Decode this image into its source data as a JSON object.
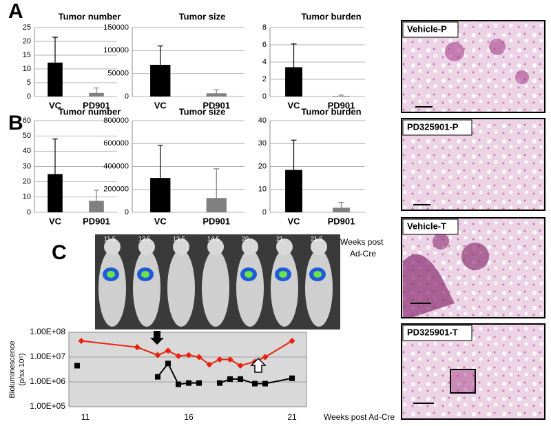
{
  "figure": {
    "panel_labels": [
      "A",
      "B",
      "C"
    ],
    "histology_labels": [
      "Vehicle-P",
      "PD325901-P",
      "Vehicle-T",
      "PD325901-T"
    ],
    "imaging_weeks": [
      "11.5",
      "12.5",
      "13.5",
      "14.5",
      "20",
      "21",
      "21.5"
    ],
    "imaging_caption": [
      "Weeks post",
      "Ad-Cre"
    ]
  },
  "chart_data": [
    {
      "type": "bar",
      "title": "Tumor number",
      "categories": [
        "VC",
        "PD901"
      ],
      "values": [
        12.3,
        1.3
      ],
      "errors": [
        9.2,
        1.8
      ],
      "colors": [
        "#000000",
        "#808080"
      ],
      "ylim": [
        0,
        25
      ],
      "yticks": [
        0,
        5,
        10,
        15,
        20,
        25
      ],
      "grid": true
    },
    {
      "type": "bar",
      "title": "Tumor size",
      "categories": [
        "VC",
        "PD901"
      ],
      "values": [
        69000,
        7000
      ],
      "errors": [
        41000,
        7500
      ],
      "colors": [
        "#000000",
        "#808080"
      ],
      "ylim": [
        0,
        150000
      ],
      "yticks": [
        0,
        50000,
        100000,
        150000
      ],
      "grid": true
    },
    {
      "type": "bar",
      "title": "Tumor burden",
      "categories": [
        "VC",
        "PD901"
      ],
      "values": [
        3.4,
        0.07
      ],
      "errors": [
        2.7,
        0.1
      ],
      "colors": [
        "#000000",
        "#808080"
      ],
      "ylim": [
        0,
        8
      ],
      "yticks": [
        0,
        2,
        4,
        6,
        8
      ],
      "grid": true
    },
    {
      "type": "bar",
      "title": "Tumor number",
      "categories": [
        "VC",
        "PD901"
      ],
      "values": [
        25,
        7.5
      ],
      "errors": [
        23,
        7
      ],
      "colors": [
        "#000000",
        "#808080"
      ],
      "ylim": [
        0,
        60
      ],
      "yticks": [
        0,
        10,
        20,
        30,
        40,
        50,
        60
      ],
      "grid": true
    },
    {
      "type": "bar",
      "title": "Tumor size",
      "categories": [
        "VC",
        "PD901"
      ],
      "values": [
        300000,
        125000
      ],
      "errors": [
        285000,
        255000
      ],
      "colors": [
        "#000000",
        "#808080"
      ],
      "ylim": [
        0,
        800000
      ],
      "yticks": [
        0,
        200000,
        400000,
        600000,
        800000
      ],
      "grid": true
    },
    {
      "type": "bar",
      "title": "Tumor burden",
      "categories": [
        "VC",
        "PD901"
      ],
      "values": [
        18.5,
        2
      ],
      "errors": [
        13,
        2.3
      ],
      "colors": [
        "#000000",
        "#808080"
      ],
      "ylim": [
        0,
        40
      ],
      "yticks": [
        0,
        10,
        20,
        30,
        40
      ],
      "grid": true
    },
    {
      "type": "line",
      "xlabel": "Weeks post Ad-Cre",
      "ylabel": [
        "Bioluminescence",
        "(p/sx 10⁶)"
      ],
      "log_y": true,
      "grid": true,
      "x": [
        10.6,
        10.8,
        13.5,
        14.5,
        15,
        15.5,
        16,
        16.5,
        17,
        17.5,
        18,
        18.5,
        19.2,
        19.7,
        21
      ],
      "series": [
        {
          "color": "#e8200c",
          "marker": "diamond",
          "values": [
            null,
            45000000,
            25000000,
            12000000,
            18000000,
            11000000,
            12000000,
            10000000,
            5000000,
            8000000,
            8000000,
            4500000,
            6500000,
            10000000,
            45000000
          ]
        },
        {
          "color": "#000000",
          "marker": "square",
          "values": [
            4500000,
            null,
            null,
            1600000,
            5500000,
            800000,
            900000,
            900000,
            null,
            900000,
            1300000,
            1300000,
            850000,
            850000,
            1400000
          ]
        }
      ],
      "xlim": [
        10.2,
        21.7
      ],
      "xticks": [
        11,
        16,
        21
      ],
      "ylim": [
        100000,
        100000000
      ],
      "yticks": [
        {
          "value": 100000,
          "label": "1.00E+05"
        },
        {
          "value": 1000000,
          "label": "1.00E+06"
        },
        {
          "value": 10000000,
          "label": "1.00E+07"
        },
        {
          "value": 100000000,
          "label": "1.00E+08"
        }
      ]
    }
  ]
}
